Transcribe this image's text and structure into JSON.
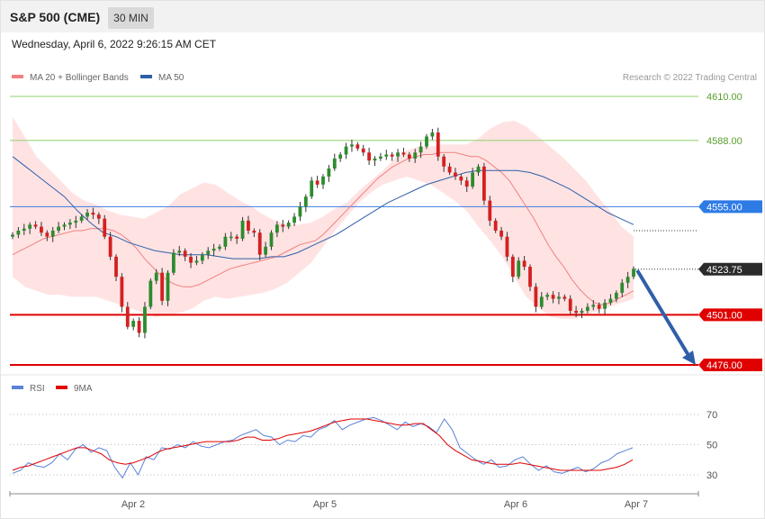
{
  "header": {
    "instrument": "S&P 500 (CME)",
    "timeframe": "30 MIN",
    "datetime": "Wednesday, April 6, 2022 9:26:15 AM CET"
  },
  "legend": {
    "ma20": "MA 20 + Bollinger Bands",
    "ma50": "MA 50",
    "copyright": "Research © 2022 Trading Central"
  },
  "rsi_legend": {
    "rsi": "RSI",
    "ma9": "9MA"
  },
  "colors": {
    "ma20": "#f08080",
    "ma50": "#2f5fa8",
    "bollinger": "#ffd9d9",
    "resistance": "#8fcf6a",
    "pivot": "#3b7be0",
    "support": "#e00000",
    "up_candle": "#2e8b2e",
    "down_candle": "#d42020",
    "arrow": "#2f5fa8",
    "rsi": "#5a82d8",
    "rsi_ma": "#e00000"
  },
  "chart_data": [
    {
      "type": "candlestick",
      "title": "S&P 500 (CME)",
      "x_labels": [
        "Apr 2",
        "Apr 5",
        "Apr 6",
        "Apr 7"
      ],
      "y_levels": [
        {
          "value": 4610.0,
          "label": "4610.00",
          "kind": "resistance"
        },
        {
          "value": 4588.0,
          "label": "4588.00",
          "kind": "resistance"
        },
        {
          "value": 4555.0,
          "label": "4555.00",
          "kind": "pivot"
        },
        {
          "value": 4523.75,
          "label": "4523.75",
          "kind": "last"
        },
        {
          "value": 4501.0,
          "label": "4501.00",
          "kind": "support"
        },
        {
          "value": 4476.0,
          "label": "4476.00",
          "kind": "support"
        }
      ],
      "ylim": [
        4470,
        4625
      ],
      "close": [
        4541,
        4543,
        4544,
        4546,
        4545,
        4542,
        4540,
        4543,
        4545,
        4546,
        4547,
        4548,
        4550,
        4552,
        4551,
        4549,
        4540,
        4530,
        4520,
        4505,
        4495,
        4498,
        4492,
        4505,
        4518,
        4522,
        4508,
        4522,
        4532,
        4533,
        4530,
        4527,
        4528,
        4531,
        4533,
        4534,
        4535,
        4540,
        4540,
        4539,
        4548,
        4543,
        4542,
        4531,
        4535,
        4542,
        4546,
        4545,
        4547,
        4550,
        4555,
        4560,
        4568,
        4566,
        4570,
        4574,
        4579,
        4581,
        4585,
        4586,
        4584,
        4582,
        4578,
        4579,
        4580,
        4581,
        4580,
        4582,
        4581,
        4579,
        4582,
        4585,
        4590,
        4592,
        4580,
        4575,
        4572,
        4570,
        4568,
        4565,
        4572,
        4575,
        4558,
        4548,
        4543,
        4540,
        4530,
        4520,
        4528,
        4525,
        4515,
        4505,
        4510,
        4511,
        4509,
        4510,
        4509,
        4503,
        4502,
        4503,
        4505,
        4506,
        4504,
        4507,
        4509,
        4512,
        4517,
        4520,
        4524
      ],
      "ma20": [
        4531,
        4533,
        4535,
        4537,
        4539,
        4540,
        4541,
        4542,
        4543,
        4543,
        4544,
        4544,
        4544,
        4543,
        4541,
        4538,
        4534,
        4529,
        4525,
        4521,
        4518,
        4516,
        4515,
        4515,
        4516,
        4518,
        4520,
        4522,
        4524,
        4525,
        4526,
        4527,
        4528,
        4529,
        4530,
        4532,
        4534,
        4536,
        4537,
        4538,
        4541,
        4545,
        4549,
        4553,
        4557,
        4561,
        4565,
        4569,
        4572,
        4575,
        4577,
        4579,
        4580,
        4581,
        4581,
        4582,
        4582,
        4582,
        4581,
        4580,
        4580,
        4578,
        4575,
        4572,
        4568,
        4562,
        4556,
        4550,
        4543,
        4536,
        4530,
        4525,
        4519,
        4514,
        4510,
        4507,
        4506,
        4507,
        4509,
        4511,
        4513
      ],
      "ma50": [
        4580,
        4575,
        4570,
        4565,
        4560,
        4553,
        4547,
        4542,
        4540,
        4537,
        4535,
        4533,
        4532,
        4531,
        4531,
        4531,
        4530,
        4529,
        4529,
        4529,
        4530,
        4530,
        4532,
        4535,
        4538,
        4541,
        4545,
        4549,
        4553,
        4557,
        4560,
        4563,
        4566,
        4568,
        4570,
        4572,
        4573,
        4573,
        4573,
        4573,
        4572,
        4570,
        4567,
        4564,
        4560,
        4556,
        4552,
        4549,
        4546
      ],
      "bb_upper": [
        4600,
        4590,
        4580,
        4574,
        4568,
        4562,
        4558,
        4556,
        4553,
        4551,
        4550,
        4549,
        4552,
        4555,
        4561,
        4564,
        4567,
        4566,
        4562,
        4558,
        4555,
        4551,
        4548,
        4546,
        4546,
        4547,
        4550,
        4554,
        4557,
        4563,
        4568,
        4573,
        4579,
        4583,
        4585,
        4585,
        4586,
        4586,
        4586,
        4589,
        4594,
        4597,
        4598,
        4595,
        4590,
        4585,
        4580,
        4574,
        4568,
        4560,
        4553,
        4545,
        4540
      ],
      "bb_lower": [
        4520,
        4515,
        4513,
        4511,
        4511,
        4510,
        4510,
        4510,
        4508,
        4506,
        4504,
        4502,
        4500,
        4501,
        4502,
        4504,
        4508,
        4510,
        4509,
        4510,
        4511,
        4512,
        4514,
        4517,
        4522,
        4527,
        4535,
        4543,
        4550,
        4557,
        4562,
        4566,
        4568,
        4570,
        4568,
        4566,
        4562,
        4558,
        4553,
        4545,
        4538,
        4530,
        4520,
        4510,
        4505,
        4500,
        4499,
        4499,
        4501,
        4503,
        4505,
        4507,
        4509
      ]
    },
    {
      "type": "line",
      "title": "",
      "series": [
        {
          "name": "RSI",
          "values": [
            31,
            33,
            38,
            36,
            35,
            38,
            44,
            40,
            47,
            50,
            45,
            48,
            46,
            35,
            28,
            38,
            30,
            42,
            40,
            48,
            47,
            50,
            48,
            52,
            49,
            48,
            50,
            52,
            53,
            56,
            58,
            60,
            56,
            55,
            50,
            53,
            52,
            56,
            55,
            60,
            62,
            66,
            60,
            63,
            65,
            67,
            68,
            66,
            63,
            60,
            65,
            62,
            64,
            62,
            58,
            67,
            60,
            48,
            44,
            40,
            37,
            40,
            35,
            36,
            40,
            42,
            37,
            33,
            36,
            32,
            31,
            33,
            35,
            32,
            34,
            38,
            40,
            44,
            46,
            48
          ]
        },
        {
          "name": "9MA",
          "values": [
            33,
            35,
            36,
            38,
            40,
            42,
            44,
            46,
            48,
            48,
            46,
            44,
            40,
            38,
            37,
            38,
            40,
            42,
            45,
            47,
            48,
            49,
            50,
            51,
            52,
            52,
            52,
            52,
            53,
            55,
            55,
            53,
            53,
            54,
            56,
            57,
            58,
            59,
            61,
            63,
            65,
            66,
            67,
            67,
            67,
            66,
            65,
            64,
            63,
            63,
            64,
            64,
            60,
            56,
            50,
            46,
            43,
            40,
            39,
            38,
            37,
            37,
            37,
            38,
            37,
            36,
            35,
            34,
            33,
            33,
            33,
            33,
            33,
            33,
            34,
            35,
            37,
            40
          ]
        }
      ],
      "y_ticks": [
        70,
        50,
        30
      ],
      "ylim": [
        18,
        80
      ]
    }
  ]
}
